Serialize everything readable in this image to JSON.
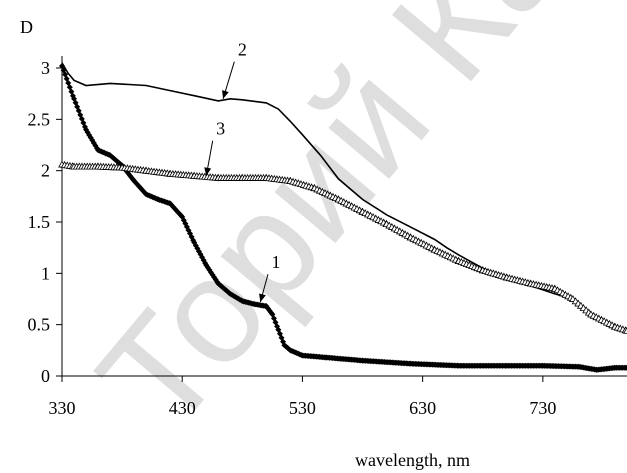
{
  "watermark_text": "Торий Ка",
  "chart_data": {
    "type": "line",
    "ylabel": "D",
    "xlabel": "wavelength, nm",
    "xlim": [
      330,
      800
    ],
    "ylim": [
      0,
      3
    ],
    "x_ticks": [
      330,
      430,
      530,
      630,
      730
    ],
    "y_ticks": [
      0,
      0.5,
      1,
      1.5,
      2,
      2.5,
      3
    ],
    "grid": false,
    "legend": "none",
    "series": [
      {
        "name": "1",
        "marker": "diamond",
        "color": "#000000",
        "x": [
          330,
          340,
          350,
          360,
          370,
          380,
          390,
          400,
          410,
          420,
          430,
          440,
          450,
          460,
          470,
          480,
          490,
          500,
          505,
          510,
          515,
          520,
          530,
          550,
          580,
          620,
          660,
          700,
          730,
          760,
          775,
          790,
          800
        ],
        "y": [
          3.02,
          2.7,
          2.4,
          2.2,
          2.15,
          2.05,
          1.9,
          1.77,
          1.72,
          1.68,
          1.55,
          1.3,
          1.08,
          0.9,
          0.8,
          0.73,
          0.7,
          0.68,
          0.6,
          0.45,
          0.3,
          0.25,
          0.2,
          0.18,
          0.15,
          0.12,
          0.1,
          0.1,
          0.1,
          0.09,
          0.06,
          0.08,
          0.08
        ]
      },
      {
        "name": "2",
        "marker": "none",
        "color": "#000000",
        "x": [
          330,
          335,
          340,
          350,
          370,
          400,
          420,
          440,
          460,
          470,
          480,
          500,
          510,
          520,
          530,
          545,
          560,
          580,
          600,
          620,
          640,
          650,
          660,
          680,
          700,
          720,
          740,
          755,
          770,
          790,
          800
        ],
        "y": [
          3.05,
          2.95,
          2.88,
          2.83,
          2.85,
          2.83,
          2.78,
          2.73,
          2.68,
          2.7,
          2.69,
          2.66,
          2.6,
          2.48,
          2.35,
          2.15,
          1.92,
          1.72,
          1.57,
          1.45,
          1.33,
          1.25,
          1.18,
          1.05,
          0.95,
          0.88,
          0.8,
          0.75,
          0.6,
          0.47,
          0.43
        ]
      },
      {
        "name": "3",
        "marker": "triangle",
        "color": "#000000",
        "x": [
          330,
          340,
          360,
          380,
          400,
          420,
          440,
          460,
          480,
          500,
          520,
          540,
          560,
          580,
          600,
          620,
          640,
          660,
          680,
          700,
          720,
          740,
          755,
          770,
          790,
          800
        ],
        "y": [
          2.06,
          2.04,
          2.04,
          2.03,
          2.0,
          1.97,
          1.95,
          1.93,
          1.93,
          1.93,
          1.9,
          1.83,
          1.72,
          1.6,
          1.48,
          1.35,
          1.23,
          1.12,
          1.03,
          0.96,
          0.9,
          0.85,
          0.75,
          0.6,
          0.48,
          0.44
        ]
      }
    ],
    "annotations": [
      {
        "text": "1",
        "x": 508,
        "y": 1.05,
        "arrow_to": [
          495,
          0.72
        ]
      },
      {
        "text": "2",
        "x": 480,
        "y": 3.12,
        "arrow_to": [
          464,
          2.7
        ]
      },
      {
        "text": "3",
        "x": 462,
        "y": 2.35,
        "arrow_to": [
          450,
          1.95
        ]
      }
    ]
  }
}
